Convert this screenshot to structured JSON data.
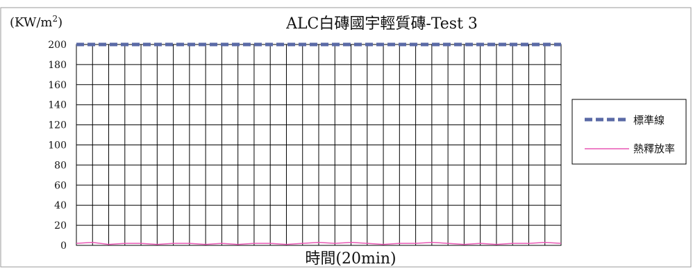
{
  "chart_data": {
    "type": "line",
    "title": "ALC白磚國宇輕質磚-Test 3",
    "unit_label_main": "(KW/m",
    "unit_label_sup": "2",
    "unit_label_close": ")",
    "xlabel": "時間(20min)",
    "ylim": [
      0,
      200
    ],
    "yticks": [
      "0",
      "20",
      "40",
      "60",
      "80",
      "100",
      "120",
      "140",
      "160",
      "180",
      "200"
    ],
    "grid": true,
    "legend_position": "right",
    "x_intervals": 30,
    "series": [
      {
        "name": "標準線",
        "style": "dashed",
        "color": "#5a6aa6",
        "values": [
          200,
          200,
          200,
          200,
          200,
          200,
          200,
          200,
          200,
          200,
          200,
          200,
          200,
          200,
          200,
          200,
          200,
          200,
          200,
          200,
          200,
          200,
          200,
          200,
          200,
          200,
          200,
          200,
          200,
          200,
          200
        ]
      },
      {
        "name": "熱釋放率",
        "style": "solid",
        "color": "#e857b4",
        "values": [
          2,
          3,
          1,
          2,
          2,
          1,
          2,
          2,
          1,
          2,
          1,
          2,
          2,
          1,
          2,
          3,
          2,
          3,
          2,
          1,
          2,
          2,
          3,
          2,
          1,
          2,
          1,
          2,
          2,
          3,
          2
        ]
      }
    ]
  }
}
